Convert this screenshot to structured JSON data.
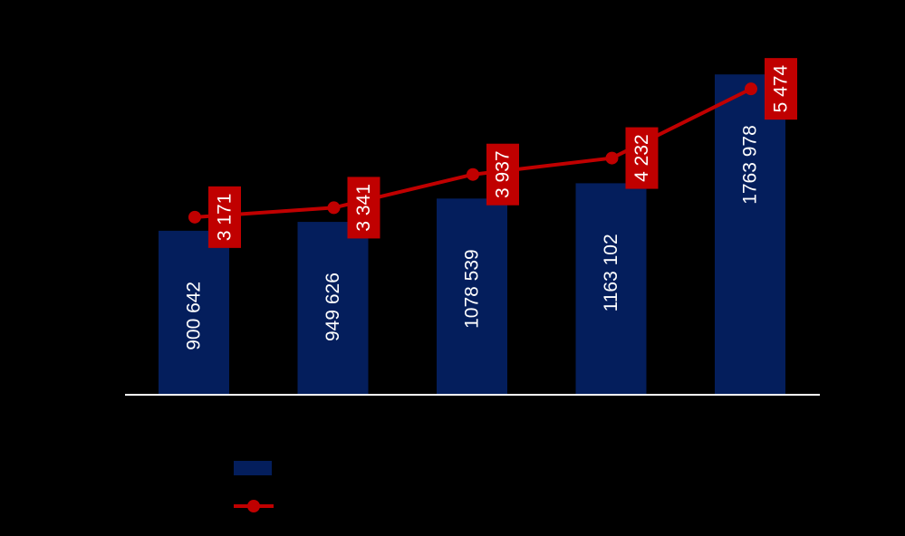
{
  "chart_data": {
    "type": "bar",
    "categories": [
      "",
      "",
      "",
      "",
      ""
    ],
    "ylim": [
      0,
      2000000
    ],
    "grid": false,
    "legend_placement": "bottom-left",
    "bar_color": "#041e5c",
    "line_color": "#c00000",
    "axis_color": "#ffffff",
    "background_color": "#000000",
    "series": [
      {
        "kind": "bar",
        "values": [
          900642,
          949626,
          1078539,
          1163102,
          1763978
        ],
        "labels": [
          "900 642",
          "949 626",
          "1078 539",
          "1163 102",
          "1763 978"
        ]
      },
      {
        "kind": "line",
        "secondary_axis": true,
        "ylim": [
          0,
          6500
        ],
        "values": [
          3171,
          3341,
          3937,
          4232,
          5474
        ],
        "labels": [
          "3 171",
          "3 341",
          "3 937",
          "4 232",
          "5 474"
        ]
      }
    ]
  }
}
